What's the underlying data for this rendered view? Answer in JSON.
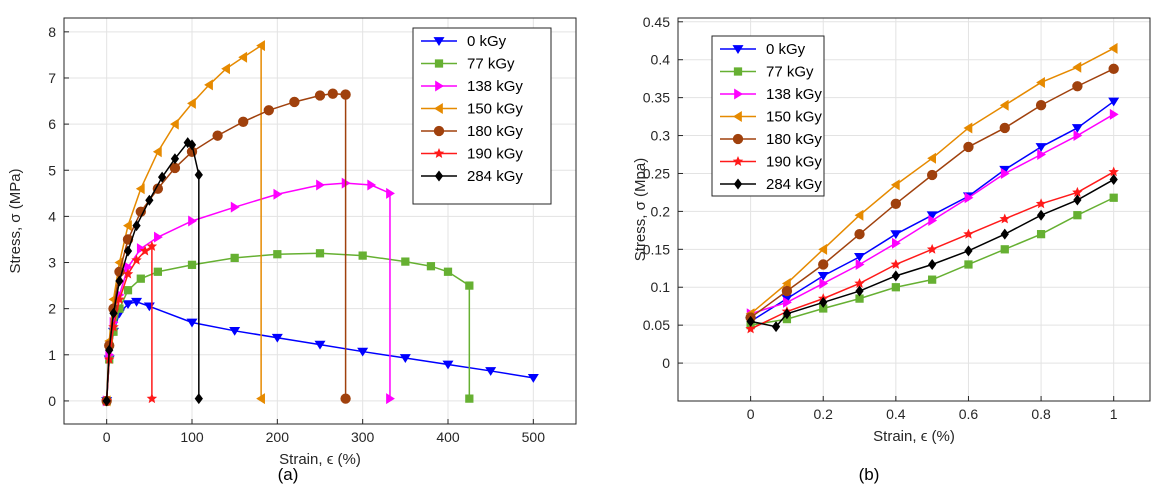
{
  "chart_data": [
    {
      "type": "line",
      "panel_label": "(a)",
      "xlabel": "Strain, ϵ (%)",
      "ylabel": "Stress, σ (MPa)",
      "xlim": [
        -50,
        550
      ],
      "ylim": [
        -0.5,
        8.3
      ],
      "xticks": [
        0,
        100,
        200,
        300,
        400,
        500
      ],
      "yticks": [
        0,
        1,
        2,
        3,
        4,
        5,
        6,
        7,
        8
      ],
      "grid": true,
      "legend_position": "top-right",
      "series": [
        {
          "name": "0 kGy",
          "color": "#0000ff",
          "marker": "triangle-down",
          "x": [
            0,
            3,
            8,
            15,
            25,
            35,
            50,
            100,
            150,
            200,
            250,
            300,
            350,
            400,
            450,
            500
          ],
          "y": [
            0,
            0.9,
            1.5,
            1.9,
            2.1,
            2.15,
            2.05,
            1.7,
            1.52,
            1.37,
            1.22,
            1.07,
            0.93,
            0.79,
            0.65,
            0.5
          ]
        },
        {
          "name": "77 kGy",
          "color": "#66b032",
          "marker": "square",
          "x": [
            0,
            3,
            8,
            15,
            25,
            40,
            60,
            100,
            150,
            200,
            250,
            300,
            350,
            380,
            400,
            425,
            425
          ],
          "y": [
            0,
            0.9,
            1.5,
            2.0,
            2.4,
            2.65,
            2.8,
            2.95,
            3.1,
            3.18,
            3.2,
            3.15,
            3.02,
            2.92,
            2.8,
            2.5,
            0.05
          ]
        },
        {
          "name": "138 kGy",
          "color": "#ff00ff",
          "marker": "triangle-right",
          "x": [
            0,
            3,
            8,
            15,
            25,
            40,
            60,
            100,
            150,
            200,
            250,
            280,
            310,
            332,
            332
          ],
          "y": [
            0,
            1.0,
            1.7,
            2.3,
            2.9,
            3.3,
            3.55,
            3.9,
            4.2,
            4.48,
            4.68,
            4.72,
            4.68,
            4.5,
            0.05
          ]
        },
        {
          "name": "150 kGy",
          "color": "#e68a00",
          "marker": "triangle-left",
          "x": [
            0,
            3,
            8,
            15,
            25,
            40,
            60,
            80,
            100,
            120,
            140,
            160,
            181,
            181
          ],
          "y": [
            0,
            1.3,
            2.2,
            3.0,
            3.8,
            4.6,
            5.4,
            6.0,
            6.45,
            6.85,
            7.2,
            7.45,
            7.7,
            0.05
          ]
        },
        {
          "name": "180 kGy",
          "color": "#a0410d",
          "marker": "circle",
          "x": [
            0,
            3,
            8,
            15,
            25,
            40,
            60,
            80,
            100,
            130,
            160,
            190,
            220,
            250,
            265,
            280,
            280
          ],
          "y": [
            0,
            1.2,
            2.0,
            2.8,
            3.5,
            4.1,
            4.6,
            5.05,
            5.4,
            5.75,
            6.05,
            6.3,
            6.48,
            6.62,
            6.66,
            6.64,
            0.05
          ]
        },
        {
          "name": "190 kGy",
          "color": "#ff1a1a",
          "marker": "star",
          "x": [
            0,
            3,
            8,
            15,
            25,
            35,
            45,
            53,
            53
          ],
          "y": [
            0,
            0.9,
            1.6,
            2.2,
            2.75,
            3.05,
            3.25,
            3.35,
            0.05
          ]
        },
        {
          "name": "284 kGy",
          "color": "#000000",
          "marker": "diamond",
          "x": [
            0,
            3,
            8,
            15,
            25,
            35,
            50,
            65,
            80,
            95,
            100,
            108,
            108
          ],
          "y": [
            0,
            1.1,
            1.9,
            2.6,
            3.25,
            3.8,
            4.35,
            4.85,
            5.25,
            5.6,
            5.55,
            4.9,
            0.05
          ]
        }
      ]
    },
    {
      "type": "line",
      "panel_label": "(b)",
      "xlabel": "Strain, ϵ (%)",
      "ylabel": "Stress, σ (Mpa)",
      "xlim": [
        -0.2,
        1.1
      ],
      "ylim": [
        -0.05,
        0.455
      ],
      "xticks": [
        0,
        0.2,
        0.4,
        0.6,
        0.8,
        1
      ],
      "yticks": [
        0,
        0.05,
        0.1,
        0.15,
        0.2,
        0.25,
        0.3,
        0.35,
        0.4,
        0.45
      ],
      "grid": true,
      "legend_position": "top-left",
      "series": [
        {
          "name": "0 kGy",
          "color": "#0000ff",
          "marker": "triangle-down",
          "x": [
            0,
            0.1,
            0.2,
            0.3,
            0.4,
            0.5,
            0.6,
            0.7,
            0.8,
            0.9,
            1.0
          ],
          "y": [
            0.055,
            0.085,
            0.115,
            0.14,
            0.17,
            0.195,
            0.22,
            0.255,
            0.285,
            0.31,
            0.345
          ]
        },
        {
          "name": "77 kGy",
          "color": "#66b032",
          "marker": "square",
          "x": [
            0,
            0.1,
            0.2,
            0.3,
            0.4,
            0.5,
            0.6,
            0.7,
            0.8,
            0.9,
            1.0
          ],
          "y": [
            0.05,
            0.058,
            0.072,
            0.085,
            0.1,
            0.11,
            0.13,
            0.15,
            0.17,
            0.195,
            0.218
          ]
        },
        {
          "name": "138 kGy",
          "color": "#ff00ff",
          "marker": "triangle-right",
          "x": [
            0,
            0.1,
            0.2,
            0.3,
            0.4,
            0.5,
            0.6,
            0.7,
            0.8,
            0.9,
            1.0
          ],
          "y": [
            0.065,
            0.08,
            0.105,
            0.13,
            0.158,
            0.188,
            0.218,
            0.25,
            0.275,
            0.3,
            0.328
          ]
        },
        {
          "name": "150 kGy",
          "color": "#e68a00",
          "marker": "triangle-left",
          "x": [
            0,
            0.1,
            0.2,
            0.3,
            0.4,
            0.5,
            0.6,
            0.7,
            0.8,
            0.9,
            1.0
          ],
          "y": [
            0.065,
            0.105,
            0.15,
            0.195,
            0.235,
            0.27,
            0.31,
            0.34,
            0.37,
            0.39,
            0.415
          ]
        },
        {
          "name": "180 kGy",
          "color": "#a0410d",
          "marker": "circle",
          "x": [
            0,
            0.1,
            0.2,
            0.3,
            0.4,
            0.5,
            0.6,
            0.7,
            0.8,
            0.9,
            1.0
          ],
          "y": [
            0.06,
            0.095,
            0.13,
            0.17,
            0.21,
            0.248,
            0.285,
            0.31,
            0.34,
            0.365,
            0.388
          ]
        },
        {
          "name": "190 kGy",
          "color": "#ff1a1a",
          "marker": "star",
          "x": [
            0,
            0.1,
            0.2,
            0.3,
            0.4,
            0.5,
            0.6,
            0.7,
            0.8,
            0.9,
            1.0
          ],
          "y": [
            0.045,
            0.068,
            0.085,
            0.105,
            0.13,
            0.15,
            0.17,
            0.19,
            0.21,
            0.225,
            0.252
          ]
        },
        {
          "name": "284 kGy",
          "color": "#000000",
          "marker": "diamond",
          "x": [
            0,
            0.07,
            0.1,
            0.2,
            0.3,
            0.4,
            0.5,
            0.6,
            0.7,
            0.8,
            0.9,
            1.0
          ],
          "y": [
            0.055,
            0.048,
            0.065,
            0.08,
            0.095,
            0.115,
            0.13,
            0.148,
            0.17,
            0.195,
            0.215,
            0.242
          ]
        }
      ]
    }
  ]
}
